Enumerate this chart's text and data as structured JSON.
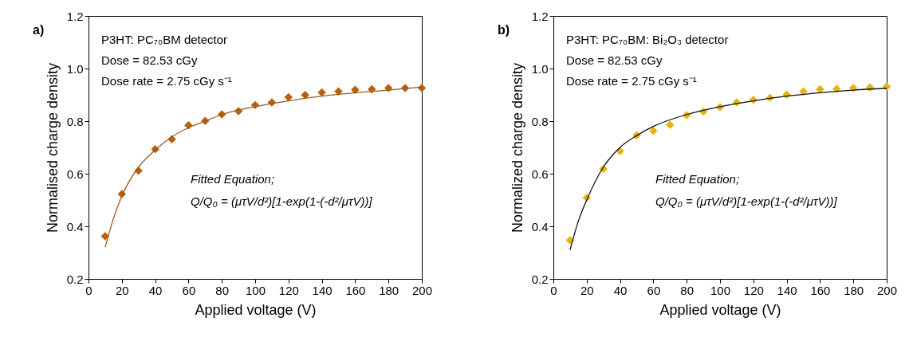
{
  "chart_data": [
    {
      "type": "scatter",
      "xlabel": "Applied voltage (V)",
      "ylabel": "Normalised charge density",
      "x": [
        10,
        20,
        30,
        40,
        50,
        60,
        70,
        80,
        90,
        100,
        110,
        120,
        130,
        140,
        150,
        160,
        170,
        180,
        190,
        200
      ],
      "series": [
        {
          "marker": "diamond",
          "color": "#b8600c",
          "values": [
            0.362,
            0.523,
            0.611,
            0.693,
            0.731,
            0.784,
            0.801,
            0.826,
            0.838,
            0.861,
            0.871,
            0.891,
            0.899,
            0.909,
            0.913,
            0.919,
            0.921,
            0.926,
            0.926,
            0.926
          ]
        },
        {
          "type": "line",
          "marker": "none",
          "color": "#9c5a1e",
          "x": [
            10,
            15,
            20,
            30,
            40,
            50,
            60,
            70,
            80,
            100,
            120,
            140,
            160,
            180,
            200
          ],
          "values": [
            0.32,
            0.43,
            0.515,
            0.625,
            0.69,
            0.74,
            0.775,
            0.8,
            0.825,
            0.855,
            0.877,
            0.895,
            0.908,
            0.918,
            0.93
          ]
        }
      ],
      "xlim": [
        0,
        200
      ],
      "xticks": [
        0,
        20,
        40,
        60,
        80,
        100,
        120,
        140,
        160,
        180,
        200
      ],
      "ylim": [
        0.2,
        1.2
      ],
      "yticks": [
        0.2,
        0.4,
        0.6,
        0.8,
        {
          "value": 1,
          "label": "1.0"
        },
        1.2
      ],
      "grid": false,
      "annotations": [
        "a)",
        "P3HT: PC₇₀BM detector",
        "Dose = 82.53 cGy",
        "Dose rate = 2.75 cGy s⁻¹",
        "Fitted Equation;",
        "Q/Q₀ = (μτV/d²)[1-exp(1-(-d²/μτV))]"
      ]
    },
    {
      "type": "scatter",
      "xlabel": "Applied voltage (V)",
      "ylabel": "Normalized charge density",
      "x": [
        10,
        20,
        30,
        40,
        50,
        60,
        70,
        80,
        90,
        100,
        110,
        120,
        130,
        140,
        150,
        160,
        170,
        180,
        190,
        200
      ],
      "series": [
        {
          "marker": "diamond",
          "color": "#e6b410",
          "values": [
            0.347,
            0.509,
            0.618,
            0.686,
            0.746,
            0.763,
            0.786,
            0.823,
            0.836,
            0.853,
            0.871,
            0.881,
            0.889,
            0.901,
            0.913,
            0.921,
            0.923,
            0.926,
            0.928,
            0.931
          ]
        },
        {
          "type": "line",
          "marker": "none",
          "color": "#111111",
          "x": [
            10,
            15,
            20,
            30,
            40,
            50,
            60,
            80,
            100,
            120,
            140,
            160,
            180,
            200
          ],
          "values": [
            0.31,
            0.42,
            0.5,
            0.625,
            0.7,
            0.745,
            0.78,
            0.825,
            0.855,
            0.877,
            0.895,
            0.908,
            0.918,
            0.925
          ]
        }
      ],
      "xlim": [
        0,
        200
      ],
      "xticks": [
        0,
        20,
        40,
        60,
        80,
        100,
        120,
        140,
        160,
        180,
        200
      ],
      "ylim": [
        0.2,
        1.2
      ],
      "yticks": [
        0.2,
        0.4,
        0.6,
        0.8,
        {
          "value": 1,
          "label": "1.0"
        },
        1.2
      ],
      "grid": false,
      "annotations": [
        "b)",
        "P3HT: PC₇₀BM: Bi₂O₃ detector",
        "Dose = 82.53 cGy",
        "Dose rate = 2.75 cGy s⁻¹",
        "Fitted Equation;",
        "Q/Q₀ = (μτV/d²)[1-exp(1-(-d²/μτV))]"
      ]
    }
  ]
}
